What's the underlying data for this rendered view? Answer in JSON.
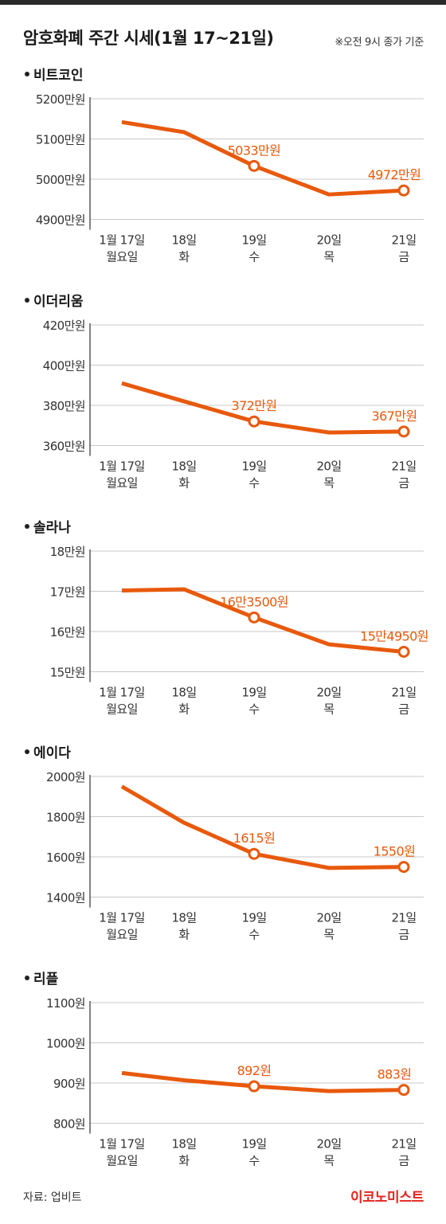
{
  "header": {
    "title": "암호화폐 주간 시세(1월 17~21일)",
    "note": "※오전 9시 종가 기준"
  },
  "footer": {
    "source": "자료: 업비트",
    "logo": "이코노미스트"
  },
  "colors": {
    "line": "#e8590c",
    "label": "#e8590c",
    "grid": "#c8c8c8",
    "axis": "#333333"
  },
  "chart_data": [
    {
      "type": "line",
      "title": "비트코인",
      "categories": [
        "1월 17일",
        "18일",
        "19일",
        "20일",
        "21일"
      ],
      "category_sublabels": [
        "월요일",
        "화",
        "수",
        "목",
        "금"
      ],
      "y_ticks": [
        4900,
        5000,
        5100,
        5200
      ],
      "y_tick_labels": [
        "4900만원",
        "5000만원",
        "5100만원",
        "5200만원"
      ],
      "ylim": [
        4900,
        5200
      ],
      "values": [
        5142,
        5117,
        5033,
        4962,
        4972
      ],
      "annotations": [
        {
          "index": 2,
          "label": "5033만원"
        },
        {
          "index": 4,
          "label": "4972만원"
        }
      ],
      "grid": true
    },
    {
      "type": "line",
      "title": "이더리움",
      "categories": [
        "1월 17일",
        "18일",
        "19일",
        "20일",
        "21일"
      ],
      "category_sublabels": [
        "월요일",
        "화",
        "수",
        "목",
        "금"
      ],
      "y_ticks": [
        360,
        380,
        400,
        420
      ],
      "y_tick_labels": [
        "360만원",
        "380만원",
        "400만원",
        "420만원"
      ],
      "ylim": [
        360,
        420
      ],
      "values": [
        391,
        382,
        372,
        366.5,
        367
      ],
      "annotations": [
        {
          "index": 2,
          "label": "372만원"
        },
        {
          "index": 4,
          "label": "367만원"
        }
      ],
      "grid": true
    },
    {
      "type": "line",
      "title": "솔라나",
      "categories": [
        "1월 17일",
        "18일",
        "19일",
        "20일",
        "21일"
      ],
      "category_sublabels": [
        "월요일",
        "화",
        "수",
        "목",
        "금"
      ],
      "y_ticks": [
        15,
        16,
        17,
        18
      ],
      "y_tick_labels": [
        "15만원",
        "16만원",
        "17만원",
        "18만원"
      ],
      "ylim": [
        15,
        18
      ],
      "values": [
        17.02,
        17.05,
        16.35,
        15.68,
        15.495
      ],
      "annotations": [
        {
          "index": 2,
          "label": "16만3500원"
        },
        {
          "index": 4,
          "label": "15만4950원"
        }
      ],
      "grid": true
    },
    {
      "type": "line",
      "title": "에이다",
      "categories": [
        "1월 17일",
        "18일",
        "19일",
        "20일",
        "21일"
      ],
      "category_sublabels": [
        "월요일",
        "화",
        "수",
        "목",
        "금"
      ],
      "y_ticks": [
        1400,
        1600,
        1800,
        2000
      ],
      "y_tick_labels": [
        "1400원",
        "1600원",
        "1800원",
        "2000원"
      ],
      "ylim": [
        1400,
        2000
      ],
      "values": [
        1950,
        1770,
        1615,
        1545,
        1550
      ],
      "annotations": [
        {
          "index": 2,
          "label": "1615원"
        },
        {
          "index": 4,
          "label": "1550원"
        }
      ],
      "grid": true
    },
    {
      "type": "line",
      "title": "리플",
      "categories": [
        "1월 17일",
        "18일",
        "19일",
        "20일",
        "21일"
      ],
      "category_sublabels": [
        "월요일",
        "화",
        "수",
        "목",
        "금"
      ],
      "y_ticks": [
        800,
        900,
        1000,
        1100
      ],
      "y_tick_labels": [
        "800원",
        "900원",
        "1000원",
        "1100원"
      ],
      "ylim": [
        800,
        1100
      ],
      "values": [
        925,
        907,
        892,
        880,
        883
      ],
      "annotations": [
        {
          "index": 2,
          "label": "892원"
        },
        {
          "index": 4,
          "label": "883원"
        }
      ],
      "grid": true
    }
  ]
}
